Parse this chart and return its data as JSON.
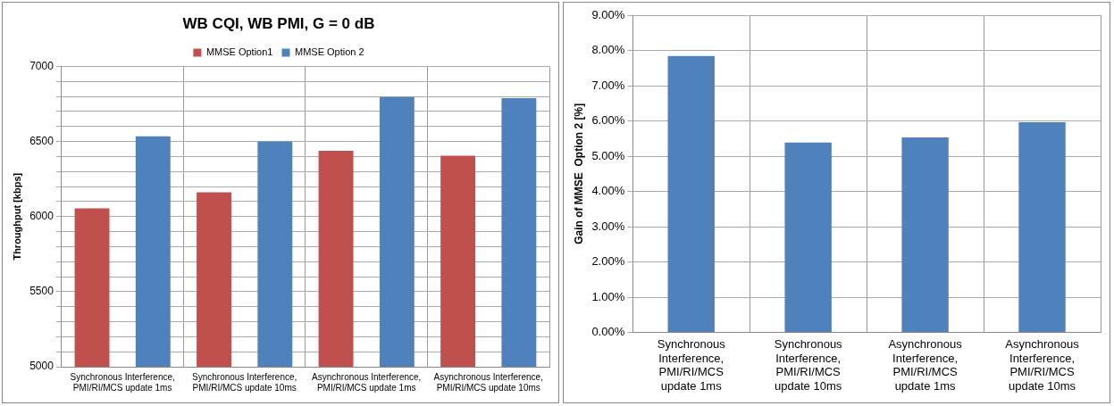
{
  "chart_data": [
    {
      "type": "bar",
      "title": "WB CQI, WB PMI, G = 0 dB",
      "ylabel": "Throughput [kbps]",
      "categories": [
        "Synchronous Interference, PMI/RI/MCS update 1ms",
        "Synchronous Interference, PMI/RI/MCS update 10ms",
        "Asynchronous Interference, PMI/RI/MCS update 1ms",
        "Asynchronous Interference, PMI/RI/MCS update 10ms"
      ],
      "series": [
        {
          "name": "MMSE Option1",
          "color": "#c0504d",
          "values": [
            6055,
            6162,
            6438,
            6405
          ]
        },
        {
          "name": "MMSE Option 2",
          "color": "#4f81bd",
          "values": [
            6535,
            6500,
            6796,
            6788
          ]
        }
      ],
      "ylim": [
        5000,
        7000
      ],
      "yticks": [
        5000,
        {
          "value": 5100,
          "label": null
        },
        {
          "value": 5200,
          "label": null
        },
        {
          "value": 5300,
          "label": null
        },
        {
          "value": 5400,
          "label": null
        },
        5500,
        {
          "value": 5600,
          "label": null
        },
        {
          "value": 5700,
          "label": null
        },
        {
          "value": 5800,
          "label": null
        },
        {
          "value": 5900,
          "label": null
        },
        6000,
        {
          "value": 6100,
          "label": null
        },
        {
          "value": 6200,
          "label": null
        },
        {
          "value": 6300,
          "label": null
        },
        {
          "value": 6400,
          "label": null
        },
        6500,
        {
          "value": 6600,
          "label": null
        },
        {
          "value": 6700,
          "label": null
        },
        {
          "value": 6800,
          "label": null
        },
        {
          "value": 6900,
          "label": null
        },
        7000
      ],
      "grid": true,
      "legend": "top"
    },
    {
      "type": "bar",
      "ylabel": "Gain of MMSE  Option 2 [%]",
      "categories": [
        "Synchronous Interference, PMI/RI/MCS update 1ms",
        "Synchronous Interference, PMI/RI/MCS update 10ms",
        "Asynchronous Interference, PMI/RI/MCS update 1ms",
        "Asynchronous Interference, PMI/RI/MCS update 10ms"
      ],
      "values": [
        7.84,
        5.39,
        5.53,
        5.96
      ],
      "color": "#4f81bd",
      "ylim": [
        0,
        9
      ],
      "yticks": [
        {
          "value": 0,
          "label": "0.00%"
        },
        {
          "value": 1,
          "label": "1.00%"
        },
        {
          "value": 2,
          "label": "2.00%"
        },
        {
          "value": 3,
          "label": "3.00%"
        },
        {
          "value": 4,
          "label": "4.00%"
        },
        {
          "value": 5,
          "label": "5.00%"
        },
        {
          "value": 6,
          "label": "6.00%"
        },
        {
          "value": 7,
          "label": "7.00%"
        },
        {
          "value": 8,
          "label": "8.00%"
        },
        {
          "value": 9,
          "label": "9.00%"
        }
      ],
      "grid": true
    }
  ]
}
